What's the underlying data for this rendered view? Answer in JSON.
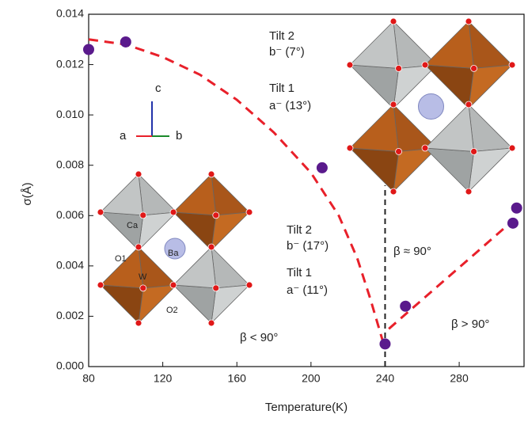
{
  "chart_data": {
    "type": "scatter",
    "x_label": "Temperature(K)",
    "y_label": "σ(Å)",
    "x": [
      80,
      100,
      206,
      240,
      251,
      309,
      311
    ],
    "values": [
      0.0126,
      0.0129,
      0.0079,
      0.0009,
      0.0024,
      0.0057,
      0.0063
    ],
    "color": "#5a1a8c",
    "fit_lines": [
      {
        "color": "#e8202a",
        "x": [
          80,
          100,
          120,
          140,
          160,
          180,
          200,
          215,
          225,
          232,
          238,
          240
        ],
        "values": [
          0.013,
          0.0128,
          0.0123,
          0.0116,
          0.0106,
          0.0093,
          0.0077,
          0.006,
          0.0043,
          0.0027,
          0.0012,
          0.0007
        ]
      },
      {
        "color": "#e8202a",
        "x": [
          242,
          309
        ],
        "values": [
          0.0015,
          0.0058
        ]
      }
    ],
    "vline": {
      "x": 240,
      "y": [
        0,
        0.0072
      ],
      "color": "#222"
    },
    "xlim": [
      80,
      315
    ],
    "ylim": [
      0,
      0.014
    ],
    "xticks": [
      80,
      120,
      160,
      200,
      240,
      280
    ],
    "yticks": [
      {
        "value": 0,
        "label": "0.000"
      },
      {
        "value": 0.002,
        "label": "0.002"
      },
      {
        "value": 0.004,
        "label": "0.004"
      },
      {
        "value": 0.006,
        "label": "0.006"
      },
      {
        "value": 0.008,
        "label": "0.008"
      },
      {
        "value": 0.01,
        "label": "0.010"
      },
      {
        "value": 0.012,
        "label": "0.012"
      },
      {
        "value": 0.014,
        "label": "0.014"
      }
    ],
    "annotations": {
      "top_tilt2": "Tilt 2",
      "top_tilt2_angle": "b⁻ (7°)",
      "top_tilt1": "Tilt 1",
      "top_tilt1_angle": "a⁻ (13°)",
      "axis_a": "a",
      "axis_b": "b",
      "axis_c": "c",
      "ca": "Ca",
      "ba": "Ba",
      "o1": "O1",
      "o2": "O2",
      "w": "W",
      "low_tilt2": "Tilt 2",
      "low_tilt2_angle": "b⁻ (17°)",
      "low_tilt1": "Tilt 1",
      "low_tilt1_angle": "a⁻ (11°)",
      "beta_eq": "β ≈ 90°",
      "beta_lt": "β < 90°",
      "beta_gt": "β > 90°"
    }
  }
}
